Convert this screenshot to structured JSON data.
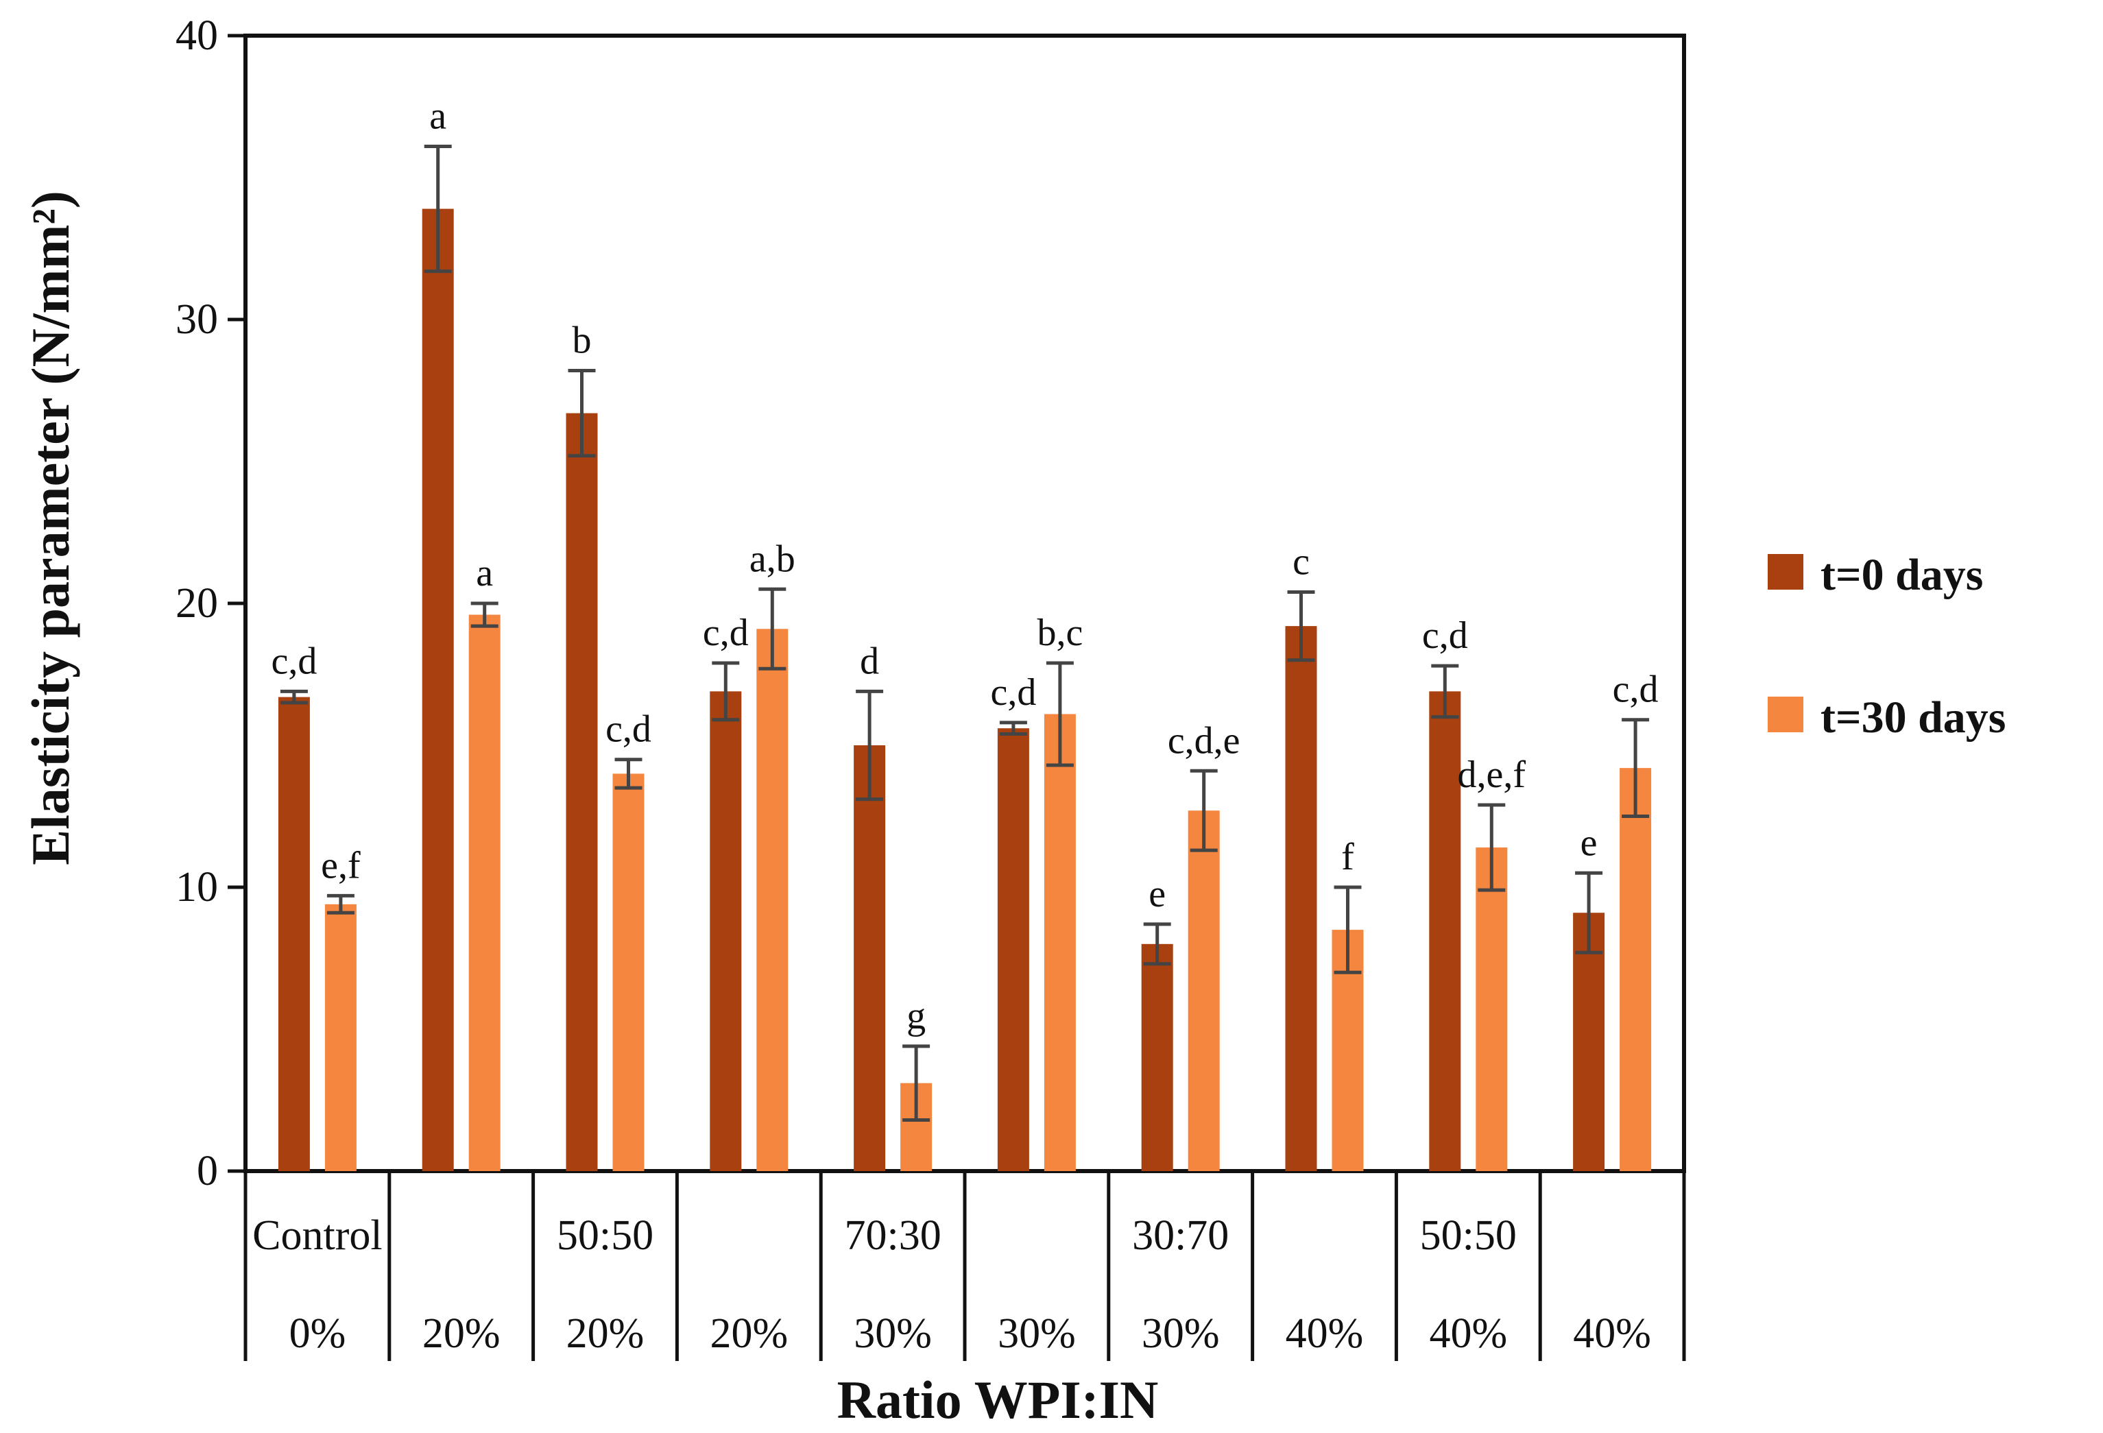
{
  "chart_data": {
    "type": "bar",
    "title": "",
    "ylabel": "Elasticity parameter (N/mm²)",
    "xlabel": "Ratio WPI:IN",
    "ylim": [
      0,
      40
    ],
    "yticks": [
      0,
      10,
      20,
      30,
      40
    ],
    "legend_position": "right",
    "categories": [
      {
        "ratio": "Control",
        "percent": "0%"
      },
      {
        "ratio": "",
        "percent": "20%"
      },
      {
        "ratio": "50:50",
        "percent": "20%"
      },
      {
        "ratio": "",
        "percent": "20%"
      },
      {
        "ratio": "70:30",
        "percent": "30%"
      },
      {
        "ratio": "",
        "percent": "30%"
      },
      {
        "ratio": "30:70",
        "percent": "30%"
      },
      {
        "ratio": "",
        "percent": "40%"
      },
      {
        "ratio": "50:50",
        "percent": "40%"
      },
      {
        "ratio": "",
        "percent": "40%"
      }
    ],
    "series": [
      {
        "name": "t=0 days",
        "color": "#a8410f",
        "values": [
          16.7,
          33.9,
          26.7,
          16.9,
          15.0,
          15.6,
          8.0,
          19.2,
          16.9,
          9.1
        ],
        "errors": [
          0.2,
          2.2,
          1.5,
          1.0,
          1.9,
          0.2,
          0.7,
          1.2,
          0.9,
          1.4
        ],
        "letters": [
          "c,d",
          "a",
          "b",
          "c,d",
          "d",
          "c,d",
          "e",
          "c",
          "c,d",
          "e"
        ]
      },
      {
        "name": "t=30 days",
        "color": "#f4863f",
        "values": [
          9.4,
          19.6,
          14.0,
          19.1,
          3.1,
          16.1,
          12.7,
          8.5,
          11.4,
          14.2
        ],
        "errors": [
          0.3,
          0.4,
          0.5,
          1.4,
          1.3,
          1.8,
          1.4,
          1.5,
          1.5,
          1.7
        ],
        "letters": [
          "e,f",
          "a",
          "c,d",
          "a,b",
          "g",
          "b,c",
          "c,d,e",
          "f",
          "d,e,f",
          "c,d"
        ]
      }
    ]
  }
}
